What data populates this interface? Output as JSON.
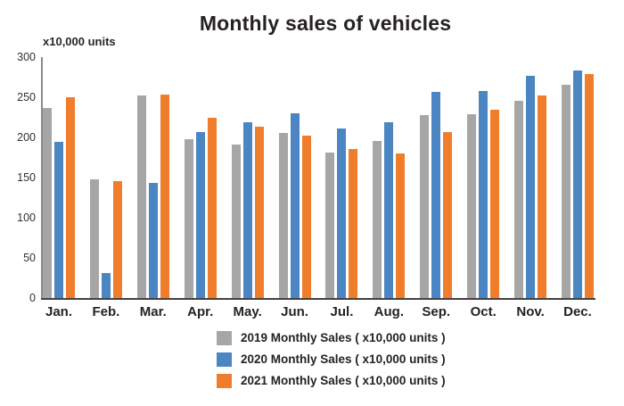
{
  "chart_data": {
    "type": "bar",
    "title": "Monthly sales of vehicles",
    "ylabel": "x10,000 units",
    "xlabel": "",
    "categories": [
      "Jan.",
      "Feb.",
      "Mar.",
      "Apr.",
      "May.",
      "Jun.",
      "Jul.",
      "Aug.",
      "Sep.",
      "Oct.",
      "Nov.",
      "Dec."
    ],
    "series": [
      {
        "name": "2019 Monthly Sales ( x10,000 units )",
        "year": "2019",
        "color": "#a6a6a6",
        "values": [
          237,
          148,
          252,
          198,
          191,
          206,
          181,
          196,
          228,
          229,
          246,
          266
        ]
      },
      {
        "name": "2020 Monthly Sales ( x10,000 units )",
        "year": "2020",
        "color": "#4b86c2",
        "values": [
          194,
          31,
          143,
          207,
          219,
          230,
          211,
          219,
          257,
          258,
          277,
          283
        ]
      },
      {
        "name": "2021 Monthly Sales ( x10,000 units )",
        "year": "2021",
        "color": "#f07d2b",
        "values": [
          250,
          146,
          253,
          225,
          213,
          202,
          186,
          180,
          207,
          234,
          252,
          279
        ]
      }
    ],
    "ylim": [
      0,
      300
    ],
    "yticks": [
      0,
      50,
      100,
      150,
      200,
      250,
      300
    ],
    "grid": false,
    "legend_position": "bottom",
    "axis_colors": {
      "y_axis_line": "#8a8a8a",
      "x_axis_line": "#454142"
    }
  }
}
